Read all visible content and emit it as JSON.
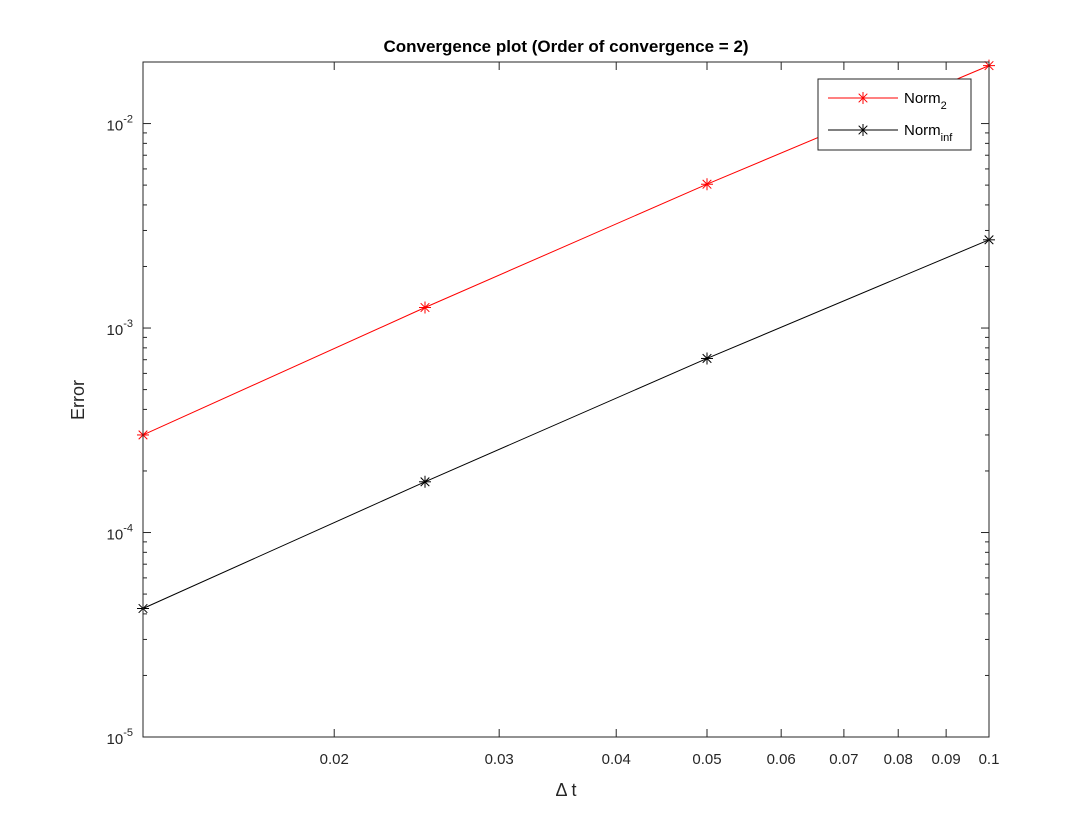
{
  "chart_data": {
    "type": "line",
    "title": "Convergence plot (Order of convergence = 2)",
    "xlabel": "Δ t",
    "ylabel": "Error",
    "xscale": "log",
    "yscale": "log",
    "xlim": [
      0.0125,
      0.1
    ],
    "ylim": [
      1e-05,
      0.02
    ],
    "x": [
      0.0125,
      0.025,
      0.05,
      0.1
    ],
    "x_ticks": [
      0.02,
      0.03,
      0.04,
      0.05,
      0.06,
      0.07,
      0.08,
      0.09,
      0.1
    ],
    "x_tick_labels": [
      "0.02",
      "0.03",
      "0.04",
      "0.05",
      "0.06",
      "0.07",
      "0.08",
      "0.09",
      "0.1"
    ],
    "y_major_ticks": [
      {
        "value": 1e-05,
        "base": "10",
        "exp": "-5"
      },
      {
        "value": 0.0001,
        "base": "10",
        "exp": "-4"
      },
      {
        "value": 0.001,
        "base": "10",
        "exp": "-3"
      },
      {
        "value": 0.01,
        "base": "10",
        "exp": "-2"
      }
    ],
    "grid": false,
    "legend_position": "top-right",
    "series": [
      {
        "name_base": "Norm",
        "name_sub": "2",
        "color": "#ff0000",
        "marker": "asterisk",
        "values": [
          0.0003,
          0.00126,
          0.00505,
          0.0192
        ]
      },
      {
        "name_base": "Norm",
        "name_sub": "inf",
        "color": "#000000",
        "marker": "asterisk",
        "values": [
          4.25e-05,
          0.000177,
          0.00071,
          0.0027
        ]
      }
    ]
  }
}
